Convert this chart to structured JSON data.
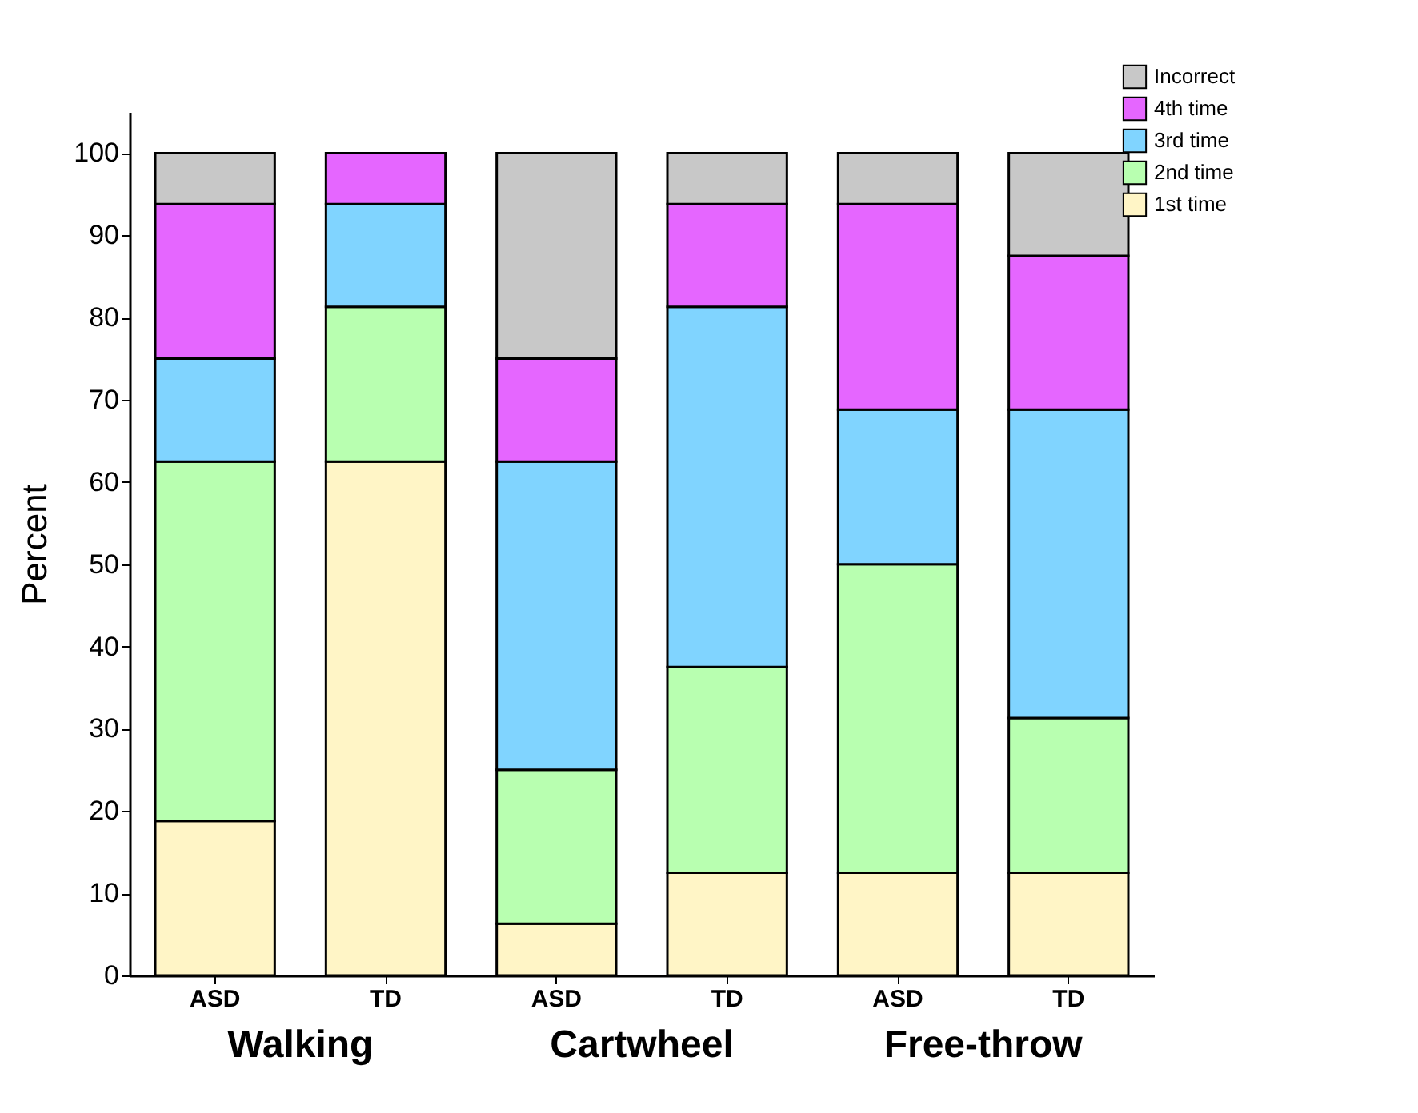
{
  "chart_data": {
    "type": "bar",
    "stacked": true,
    "ylabel": "Percent",
    "categories": [
      "ASD",
      "TD",
      "ASD",
      "TD",
      "ASD",
      "TD"
    ],
    "annotations": [
      "Walking",
      "Cartwheel",
      "Free-throw"
    ],
    "series": [
      {
        "name": "1st time",
        "color": "#fff5c6",
        "values": [
          18.8,
          62.5,
          6.3,
          12.5,
          12.5,
          12.5
        ]
      },
      {
        "name": "2nd time",
        "color": "#b8ffb0",
        "values": [
          43.7,
          18.8,
          18.7,
          25,
          37.5,
          18.8
        ]
      },
      {
        "name": "3rd time",
        "color": "#80d4ff",
        "values": [
          12.5,
          12.5,
          37.5,
          43.8,
          18.8,
          37.5
        ]
      },
      {
        "name": "4th time",
        "color": "#e566ff",
        "values": [
          18.8,
          6.2,
          12.5,
          12.5,
          25,
          18.7
        ]
      },
      {
        "name": "Incorrect",
        "color": "#c8c8c8",
        "values": [
          6.2,
          null,
          25,
          6.2,
          6.2,
          12.5
        ]
      }
    ],
    "ylim": [
      0,
      105
    ],
    "yticks": [
      0,
      10,
      20,
      30,
      40,
      50,
      60,
      70,
      80,
      90,
      100
    ],
    "grid": false,
    "legend": "top right"
  }
}
